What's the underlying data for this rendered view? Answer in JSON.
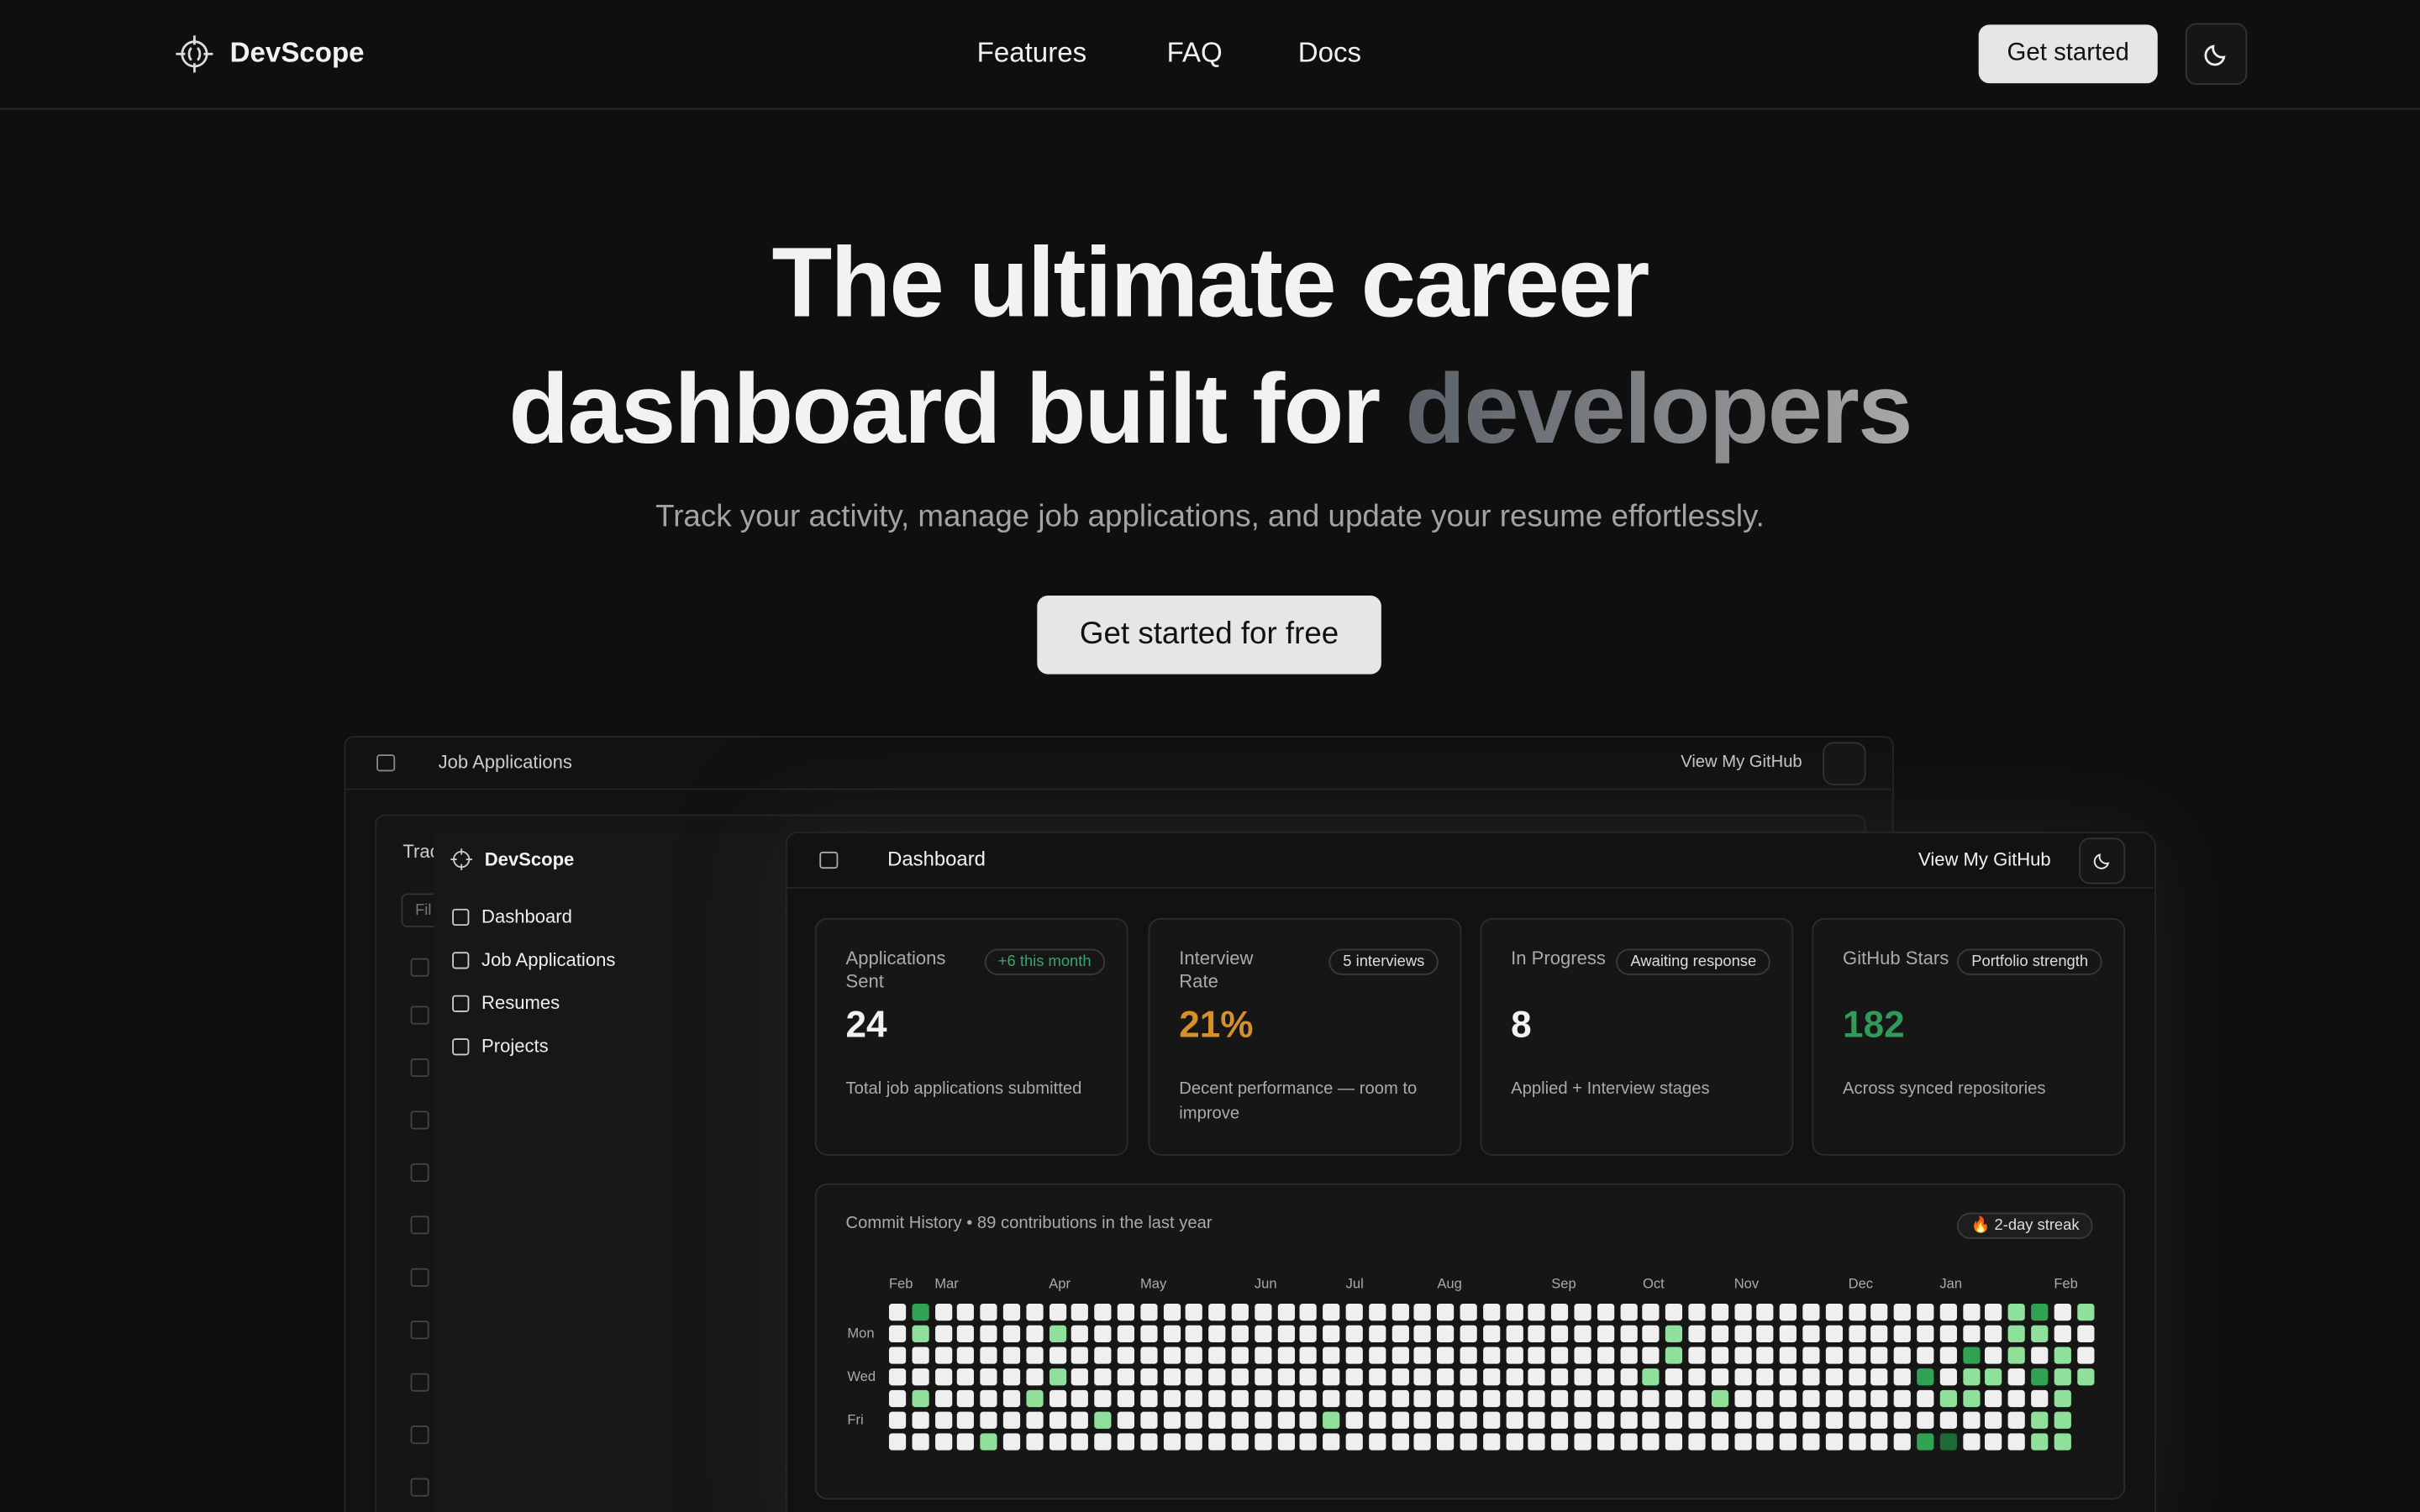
{
  "nav": {
    "brand": "DevScope",
    "links": [
      "Features",
      "FAQ",
      "Docs"
    ],
    "cta": "Get started"
  },
  "hero": {
    "title_line1": "The ultimate career",
    "title_line2": "dashboard built for",
    "highlight": "developers",
    "subtitle": "Track your activity, manage job applications, and update your resume effortlessly.",
    "cta": "Get started for free"
  },
  "back_window": {
    "title": "Job Applications",
    "github": "View My GitHub",
    "panel_title": "Trac",
    "filter": "Fil"
  },
  "sidebar": {
    "brand": "DevScope",
    "items": [
      "Dashboard",
      "Job Applications",
      "Resumes",
      "Projects"
    ]
  },
  "dashboard": {
    "title": "Dashboard",
    "github": "View My GitHub",
    "cards": [
      {
        "label": "Applications Sent",
        "badge": "+6 this month",
        "value": "24",
        "desc": "Total job applications submitted"
      },
      {
        "label": "Interview Rate",
        "badge": "5 interviews",
        "value": "21%",
        "desc": "Decent performance — room to improve"
      },
      {
        "label": "In Progress",
        "badge": "Awaiting response",
        "value": "8",
        "desc": "Applied + Interview stages"
      },
      {
        "label": "GitHub Stars",
        "badge": "Portfolio strength",
        "value": "182",
        "desc": "Across synced repositories"
      }
    ],
    "commit_history": {
      "title": "Commit History • 89 contributions in the last year",
      "streak": "🔥 2-day streak",
      "months": [
        "Feb",
        "Mar",
        "Apr",
        "May",
        "Jun",
        "Jul",
        "Aug",
        "Sep",
        "Oct",
        "Nov",
        "Dec",
        "Jan",
        "Feb"
      ],
      "days": [
        "Mon",
        "Wed",
        "Fri"
      ]
    }
  }
}
